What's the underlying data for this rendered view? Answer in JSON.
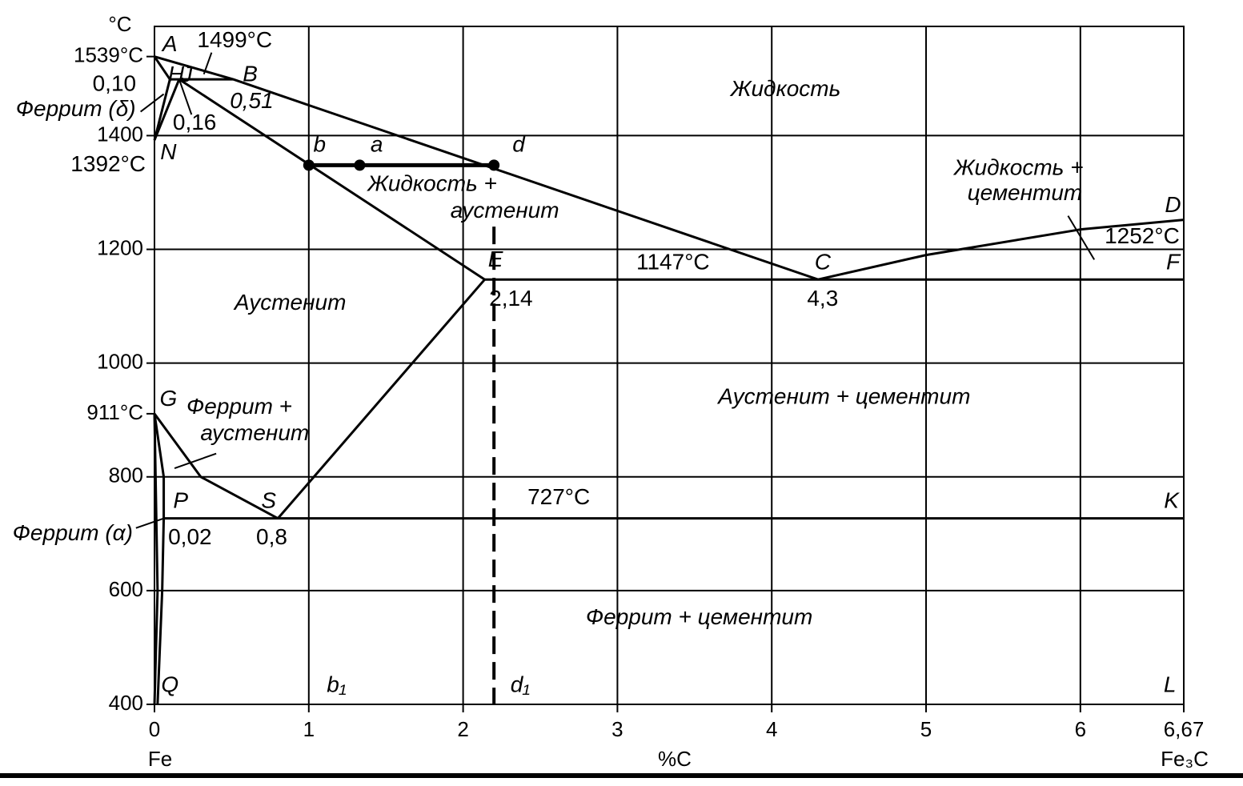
{
  "chart_data": {
    "type": "line",
    "y_label": "°C",
    "x_label": "%C",
    "x_start_label": "Fe",
    "x_end_label": "Fe₃C",
    "xlim": [
      0,
      6.67
    ],
    "ylim": [
      400,
      1592
    ],
    "grid": true,
    "color": "#000000",
    "xticks": [
      0,
      1,
      2,
      3,
      4,
      5,
      6,
      {
        "value": 6.67,
        "label": "6,67"
      }
    ],
    "yticks": [
      400,
      600,
      800,
      1000,
      1200,
      1400,
      {
        "value": 911,
        "label": "911°C"
      },
      {
        "value": 1539,
        "label": "1539°C"
      }
    ],
    "lines": [
      {
        "points": [
          [
            0,
            1539
          ],
          [
            0.51,
            1499
          ],
          [
            4.3,
            1147
          ]
        ]
      },
      {
        "points": [
          [
            4.3,
            1147
          ],
          [
            5,
            1190
          ],
          [
            6,
            1235
          ],
          [
            6.67,
            1252
          ]
        ]
      },
      {
        "points": [
          [
            0,
            1539
          ],
          [
            0.1,
            1499
          ]
        ]
      },
      {
        "points": [
          [
            0.1,
            1499
          ],
          [
            0.51,
            1499
          ]
        ]
      },
      {
        "points": [
          [
            0.1,
            1499
          ],
          [
            0,
            1392
          ]
        ]
      },
      {
        "points": [
          [
            0.16,
            1499
          ],
          [
            0,
            1392
          ]
        ]
      },
      {
        "points": [
          [
            0.16,
            1499
          ],
          [
            2.14,
            1147
          ]
        ]
      },
      {
        "points": [
          [
            2.14,
            1147
          ],
          [
            6.67,
            1147
          ]
        ]
      },
      {
        "points": [
          [
            2.14,
            1147
          ],
          [
            0.8,
            727
          ]
        ]
      },
      {
        "points": [
          [
            0,
            911
          ],
          [
            0.3,
            800
          ],
          [
            0.8,
            727
          ]
        ]
      },
      {
        "points": [
          [
            0,
            911
          ],
          [
            0.06,
            800
          ],
          [
            0.06,
            727
          ]
        ]
      },
      {
        "points": [
          [
            0.06,
            727
          ],
          [
            0.05,
            600
          ],
          [
            0.02,
            400
          ]
        ]
      },
      {
        "points": [
          [
            0,
            911
          ],
          [
            0.02,
            600
          ],
          [
            0,
            400
          ]
        ]
      },
      {
        "points": [
          [
            0.06,
            727
          ],
          [
            6.67,
            727
          ]
        ]
      },
      {
        "points": [
          [
            1,
            1348
          ],
          [
            2.2,
            1348
          ]
        ],
        "width": 5
      },
      {
        "points": [
          [
            2.2,
            1240
          ],
          [
            2.2,
            400
          ]
        ],
        "width": 4,
        "dash": true
      },
      {
        "points": [
          [
            0.37,
            1546
          ],
          [
            0.32,
            1508
          ]
        ],
        "width": 2
      },
      {
        "points": [
          [
            -0.09,
            1442
          ],
          [
            0.06,
            1473
          ]
        ],
        "width": 2
      },
      {
        "points": [
          [
            0.16,
            1499
          ],
          [
            0.24,
            1437
          ]
        ],
        "width": 2
      },
      {
        "points": [
          [
            5.92,
            1259
          ],
          [
            6.09,
            1182
          ]
        ],
        "width": 2
      },
      {
        "points": [
          [
            0.4,
            841
          ],
          [
            0.13,
            815
          ]
        ],
        "width": 2
      },
      {
        "points": [
          [
            -0.12,
            710
          ],
          [
            0.06,
            727
          ]
        ],
        "width": 2
      }
    ],
    "points": [
      [
        1,
        1348
      ],
      [
        1.33,
        1348
      ],
      [
        2.2,
        1348
      ]
    ],
    "annotations": [
      {
        "text": "A",
        "x": 0.1,
        "y": 1559,
        "style": "italic"
      },
      {
        "text": "H",
        "x": 0.14,
        "y": 1505,
        "style": "italic"
      },
      {
        "text": "J",
        "x": 0.21,
        "y": 1505,
        "style": "italic"
      },
      {
        "text": "1499°C",
        "x": 0.52,
        "y": 1566
      },
      {
        "text": "B",
        "x": 0.62,
        "y": 1506,
        "style": "italic"
      },
      {
        "text": "0,51",
        "x": 0.63,
        "y": 1459,
        "style": "italic"
      },
      {
        "text": "0,10",
        "x": -0.26,
        "y": 1489
      },
      {
        "text": "Феррит (δ)",
        "x": -0.51,
        "y": 1445,
        "style": "italic"
      },
      {
        "text": "0,16",
        "x": 0.26,
        "y": 1421
      },
      {
        "text": "1392°C",
        "x": -0.3,
        "y": 1348
      },
      {
        "text": "N",
        "x": 0.09,
        "y": 1369,
        "style": "italic"
      },
      {
        "text": "b",
        "x": 1.07,
        "y": 1382,
        "style": "italic"
      },
      {
        "text": "a",
        "x": 1.44,
        "y": 1382,
        "style": "italic"
      },
      {
        "text": "d",
        "x": 2.36,
        "y": 1382,
        "style": "italic"
      },
      {
        "text": "Жидкость",
        "x": 4.09,
        "y": 1480,
        "style": "italic"
      },
      {
        "text": "Жидкость +",
        "x": 1.8,
        "y": 1313,
        "style": "italic"
      },
      {
        "text": "аустенит",
        "x": 2.27,
        "y": 1266,
        "style": "italic"
      },
      {
        "text": "Жидкость +",
        "x": 5.6,
        "y": 1341,
        "style": "italic"
      },
      {
        "text": "цементит",
        "x": 5.64,
        "y": 1297,
        "style": "italic"
      },
      {
        "text": "D",
        "x": 6.6,
        "y": 1276,
        "style": "italic"
      },
      {
        "text": "1252°C",
        "x": 6.4,
        "y": 1221
      },
      {
        "text": "E",
        "x": 2.21,
        "y": 1180,
        "style": "italic"
      },
      {
        "text": "1147°C",
        "x": 3.36,
        "y": 1175
      },
      {
        "text": "C",
        "x": 4.33,
        "y": 1175,
        "style": "italic"
      },
      {
        "text": "F",
        "x": 6.6,
        "y": 1175,
        "style": "italic"
      },
      {
        "text": "2,14",
        "x": 2.31,
        "y": 1111
      },
      {
        "text": "4,3",
        "x": 4.33,
        "y": 1111
      },
      {
        "text": "Аустенит",
        "x": 0.88,
        "y": 1104,
        "style": "italic"
      },
      {
        "text": "Аустенит + цементит",
        "x": 4.47,
        "y": 939,
        "style": "italic"
      },
      {
        "text": "G",
        "x": 0.09,
        "y": 935,
        "style": "italic"
      },
      {
        "text": "Феррит +",
        "x": 0.55,
        "y": 921,
        "style": "italic"
      },
      {
        "text": "аустенит",
        "x": 0.65,
        "y": 875,
        "style": "italic"
      },
      {
        "text": "P",
        "x": 0.17,
        "y": 756,
        "style": "italic"
      },
      {
        "text": "S",
        "x": 0.74,
        "y": 756,
        "style": "italic"
      },
      {
        "text": "727°C",
        "x": 2.62,
        "y": 762
      },
      {
        "text": "K",
        "x": 6.59,
        "y": 756,
        "style": "italic"
      },
      {
        "text": "Феррит (α)",
        "x": -0.53,
        "y": 699,
        "style": "italic"
      },
      {
        "text": "0,02",
        "x": 0.23,
        "y": 692
      },
      {
        "text": "0,8",
        "x": 0.76,
        "y": 692
      },
      {
        "text": "Феррит + цементит",
        "x": 3.53,
        "y": 551,
        "style": "italic"
      },
      {
        "text": "Q",
        "x": 0.1,
        "y": 432,
        "style": "italic"
      },
      {
        "text": "b₁",
        "x": 1.18,
        "y": 432,
        "style": "italic"
      },
      {
        "text": "d₁",
        "x": 2.37,
        "y": 432,
        "style": "italic"
      },
      {
        "text": "L",
        "x": 6.58,
        "y": 432,
        "style": "italic"
      }
    ]
  }
}
